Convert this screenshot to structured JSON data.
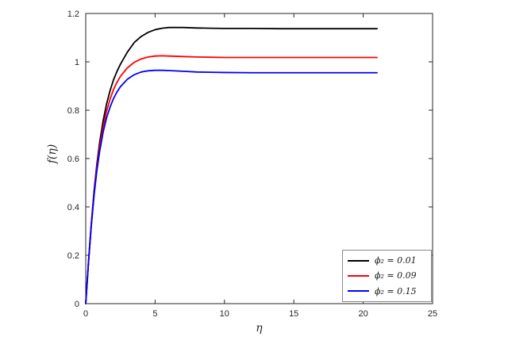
{
  "figure": {
    "background": "#ffffff"
  },
  "chart_data": {
    "type": "line",
    "title": "",
    "xlabel": "η",
    "ylabel": "f(η)",
    "xlim": [
      0,
      25
    ],
    "ylim": [
      0,
      1.2
    ],
    "xticks": [
      0,
      5,
      10,
      15,
      20,
      25
    ],
    "xtick_labels": [
      "0",
      "5",
      "10",
      "15",
      "20",
      "25"
    ],
    "yticks": [
      0,
      0.2,
      0.4,
      0.6,
      0.8,
      1,
      1.2
    ],
    "ytick_labels": [
      "0",
      "0.2",
      "0.4",
      "0.6",
      "0.8",
      "1",
      "1.2"
    ],
    "grid": false,
    "legend_position": "southeast",
    "axis_color": "#262626",
    "x": [
      0,
      0.2,
      0.4,
      0.6,
      0.8,
      1,
      1.25,
      1.5,
      1.75,
      2,
      2.25,
      2.5,
      3,
      3.5,
      4,
      4.5,
      5,
      5.5,
      6,
      7,
      8,
      9,
      10,
      12,
      14,
      16,
      18,
      20,
      21
    ],
    "series": [
      {
        "name": "ϕ₂ = 0.01",
        "color": "#000000",
        "values": [
          0,
          0.175,
          0.33,
          0.465,
          0.575,
          0.665,
          0.755,
          0.825,
          0.88,
          0.925,
          0.96,
          0.99,
          1.04,
          1.08,
          1.105,
          1.122,
          1.133,
          1.139,
          1.142,
          1.142,
          1.14,
          1.139,
          1.138,
          1.138,
          1.137,
          1.137,
          1.137,
          1.137,
          1.137
        ]
      },
      {
        "name": "ϕ₂ = 0.09",
        "color": "#ff0000",
        "values": [
          0,
          0.172,
          0.325,
          0.455,
          0.56,
          0.645,
          0.73,
          0.795,
          0.845,
          0.885,
          0.915,
          0.94,
          0.975,
          0.998,
          1.012,
          1.02,
          1.024,
          1.025,
          1.024,
          1.022,
          1.02,
          1.019,
          1.018,
          1.018,
          1.018,
          1.018,
          1.018,
          1.018,
          1.018
        ]
      },
      {
        "name": "ϕ₂ = 0.15",
        "color": "#0000ff",
        "values": [
          0,
          0.17,
          0.32,
          0.447,
          0.548,
          0.628,
          0.708,
          0.768,
          0.812,
          0.848,
          0.875,
          0.897,
          0.928,
          0.947,
          0.958,
          0.963,
          0.965,
          0.965,
          0.964,
          0.961,
          0.958,
          0.957,
          0.956,
          0.955,
          0.955,
          0.955,
          0.955,
          0.955,
          0.955
        ]
      }
    ]
  }
}
